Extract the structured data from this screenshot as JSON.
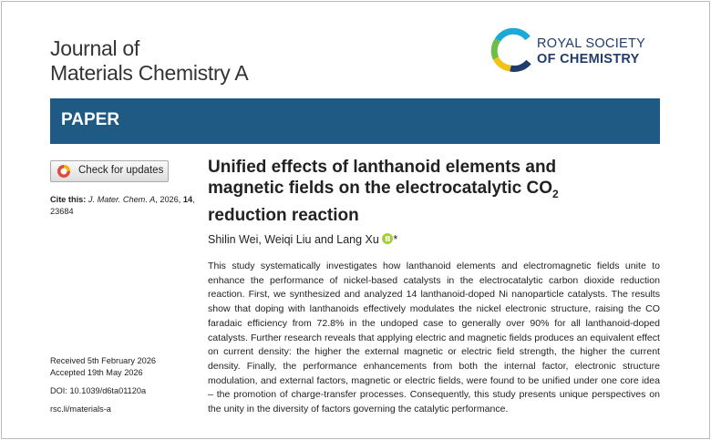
{
  "header": {
    "journal_line1": "Journal of",
    "journal_line2": "Materials Chemistry A",
    "publisher_line1": "ROYAL SOCIETY",
    "publisher_line2": "OF CHEMISTRY",
    "banner": "PAPER"
  },
  "sidebar": {
    "check_updates": "Check for updates",
    "cite": {
      "label": "Cite this:",
      "journal": "J. Mater. Chem. A",
      "year": ", 2026, ",
      "volume": "14",
      "pages": ", 23684"
    },
    "received": "Received 5th February 2026",
    "accepted": "Accepted 19th May 2026",
    "doi": "DOI: 10.1039/d6ta01120a",
    "link": "rsc.li/materials-a"
  },
  "article": {
    "title": {
      "main": "Unified effects of lanthanoid elements and magnetic fields on the electrocatalytic CO",
      "subscript": "2",
      "end": " reduction reaction"
    },
    "authors": "Shilin Wei, Weiqi Liu and Lang Xu",
    "corresponding": "*",
    "abstract": "This study systematically investigates how lanthanoid elements and electromagnetic fields unite to enhance the performance of nickel-based catalysts in the electrocatalytic carbon dioxide reduction reaction. First, we synthesized and analyzed 14 lanthanoid-doped Ni nanoparticle catalysts. The results show that doping with lanthanoids effectively modulates the nickel electronic structure, raising the CO faradaic efficiency from 72.8% in the undoped case to generally over 90% for all lanthanoid-doped catalysts. Further research reveals that applying electric and magnetic fields produces an equivalent effect on current density: the higher the external magnetic or electric field strength, the higher the current density. Finally, the performance enhancements from both the internal factor, electronic structure modulation, and external factors, magnetic or electric fields, were found to be unified under one core idea – the promotion of charge-transfer processes. Consequently, this study presents unique perspectives on the unity in the diversity of factors governing the catalytic performance."
  }
}
